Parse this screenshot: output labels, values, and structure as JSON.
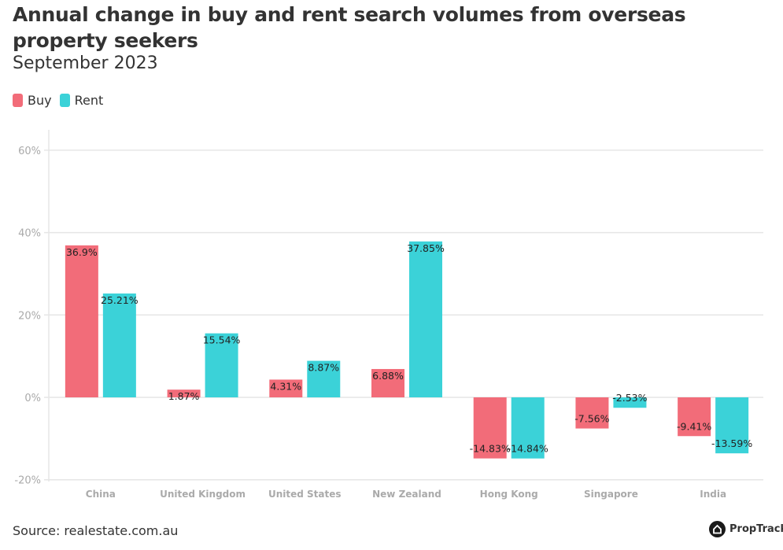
{
  "chart_data": {
    "type": "bar",
    "title": "Annual change in buy and rent search volumes from overseas property seekers",
    "subtitle": "September 2023",
    "categories": [
      "China",
      "United Kingdom",
      "United States",
      "New Zealand",
      "Hong Kong",
      "Singapore",
      "India"
    ],
    "series": [
      {
        "name": "Buy",
        "color": "#f26c79",
        "values": [
          36.9,
          1.87,
          4.31,
          6.88,
          -14.83,
          -7.56,
          -9.41
        ],
        "labels": [
          "36.9%",
          "1.87%",
          "4.31%",
          "6.88%",
          "-14.83%",
          "-7.56%",
          "-9.41%"
        ]
      },
      {
        "name": "Rent",
        "color": "#3bd2d8",
        "values": [
          25.21,
          15.54,
          8.87,
          37.85,
          -14.84,
          -2.53,
          -13.59
        ],
        "labels": [
          "25.21%",
          "15.54%",
          "8.87%",
          "37.85%",
          "-14.84%",
          "-2.53%",
          "-13.59%"
        ]
      }
    ],
    "yticks": [
      -20,
      0,
      20,
      40,
      60
    ],
    "ytick_labels": [
      "-20%",
      "0%",
      "20%",
      "40%",
      "60%"
    ],
    "ylim": [
      -20,
      60
    ],
    "grid": true,
    "legend": "top-left"
  },
  "footer": {
    "source": "Source: realestate.com.au",
    "brand": "PropTrack"
  }
}
